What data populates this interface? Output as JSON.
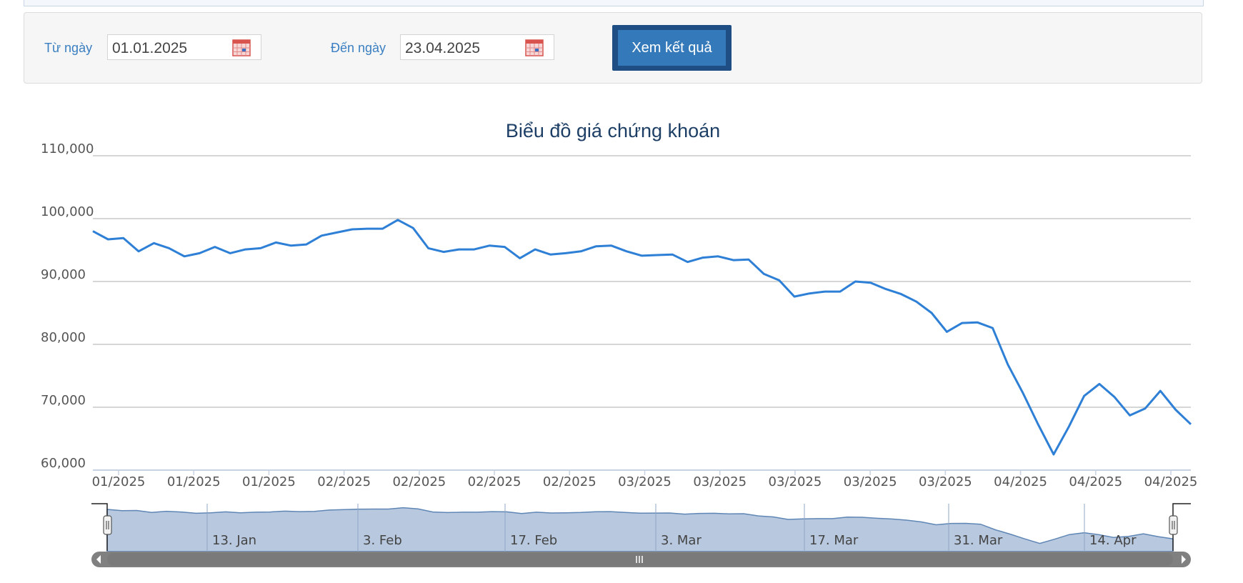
{
  "filter": {
    "from_label": "Từ ngày",
    "from_value": "01.01.2025",
    "to_label": "Đến ngày",
    "to_value": "23.04.2025",
    "submit_label": "Xem kết quả"
  },
  "colors": {
    "line": "#2e7fd6",
    "navigator_fill": "#b7c8df",
    "accent": "#3479ba"
  },
  "navigator": {
    "labels": [
      "13. Jan",
      "3. Feb",
      "17. Feb",
      "3. Mar",
      "17. Mar",
      "31. Mar",
      "14. Apr"
    ]
  },
  "chart_data": {
    "type": "line",
    "title": "Biểu đồ giá chứng khoán",
    "ylim": [
      60000,
      110000
    ],
    "yticks": [
      "110,000",
      "100,000",
      "90,000",
      "80,000",
      "70,000",
      "60,000"
    ],
    "xtick_labels": [
      "01/2025",
      "01/2025",
      "01/2025",
      "02/2025",
      "02/2025",
      "02/2025",
      "02/2025",
      "03/2025",
      "03/2025",
      "03/2025",
      "03/2025",
      "03/2025",
      "04/2025",
      "04/2025",
      "04/2025"
    ],
    "grid": true,
    "series": [
      {
        "values": [
          98000,
          96700,
          96900,
          94800,
          96100,
          95300,
          94000,
          94500,
          95500,
          94500,
          95100,
          95300,
          96200,
          95700,
          95900,
          97300,
          97800,
          98300,
          98400,
          98400,
          99800,
          98500,
          95300,
          94700,
          95100,
          95100,
          95700,
          95500,
          93700,
          95100,
          94300,
          94500,
          94800,
          95600,
          95700,
          94800,
          94100,
          94200,
          94300,
          93100,
          93800,
          94000,
          93400,
          93500,
          91200,
          90200,
          87600,
          88100,
          88400,
          88400,
          90000,
          89800,
          88800,
          88000,
          86800,
          85000,
          82000,
          83400,
          83500,
          82600,
          76800,
          72200,
          67200,
          62500,
          66900,
          71800,
          73700,
          71600,
          68700,
          69800,
          72600,
          69600,
          67300
        ]
      }
    ]
  }
}
